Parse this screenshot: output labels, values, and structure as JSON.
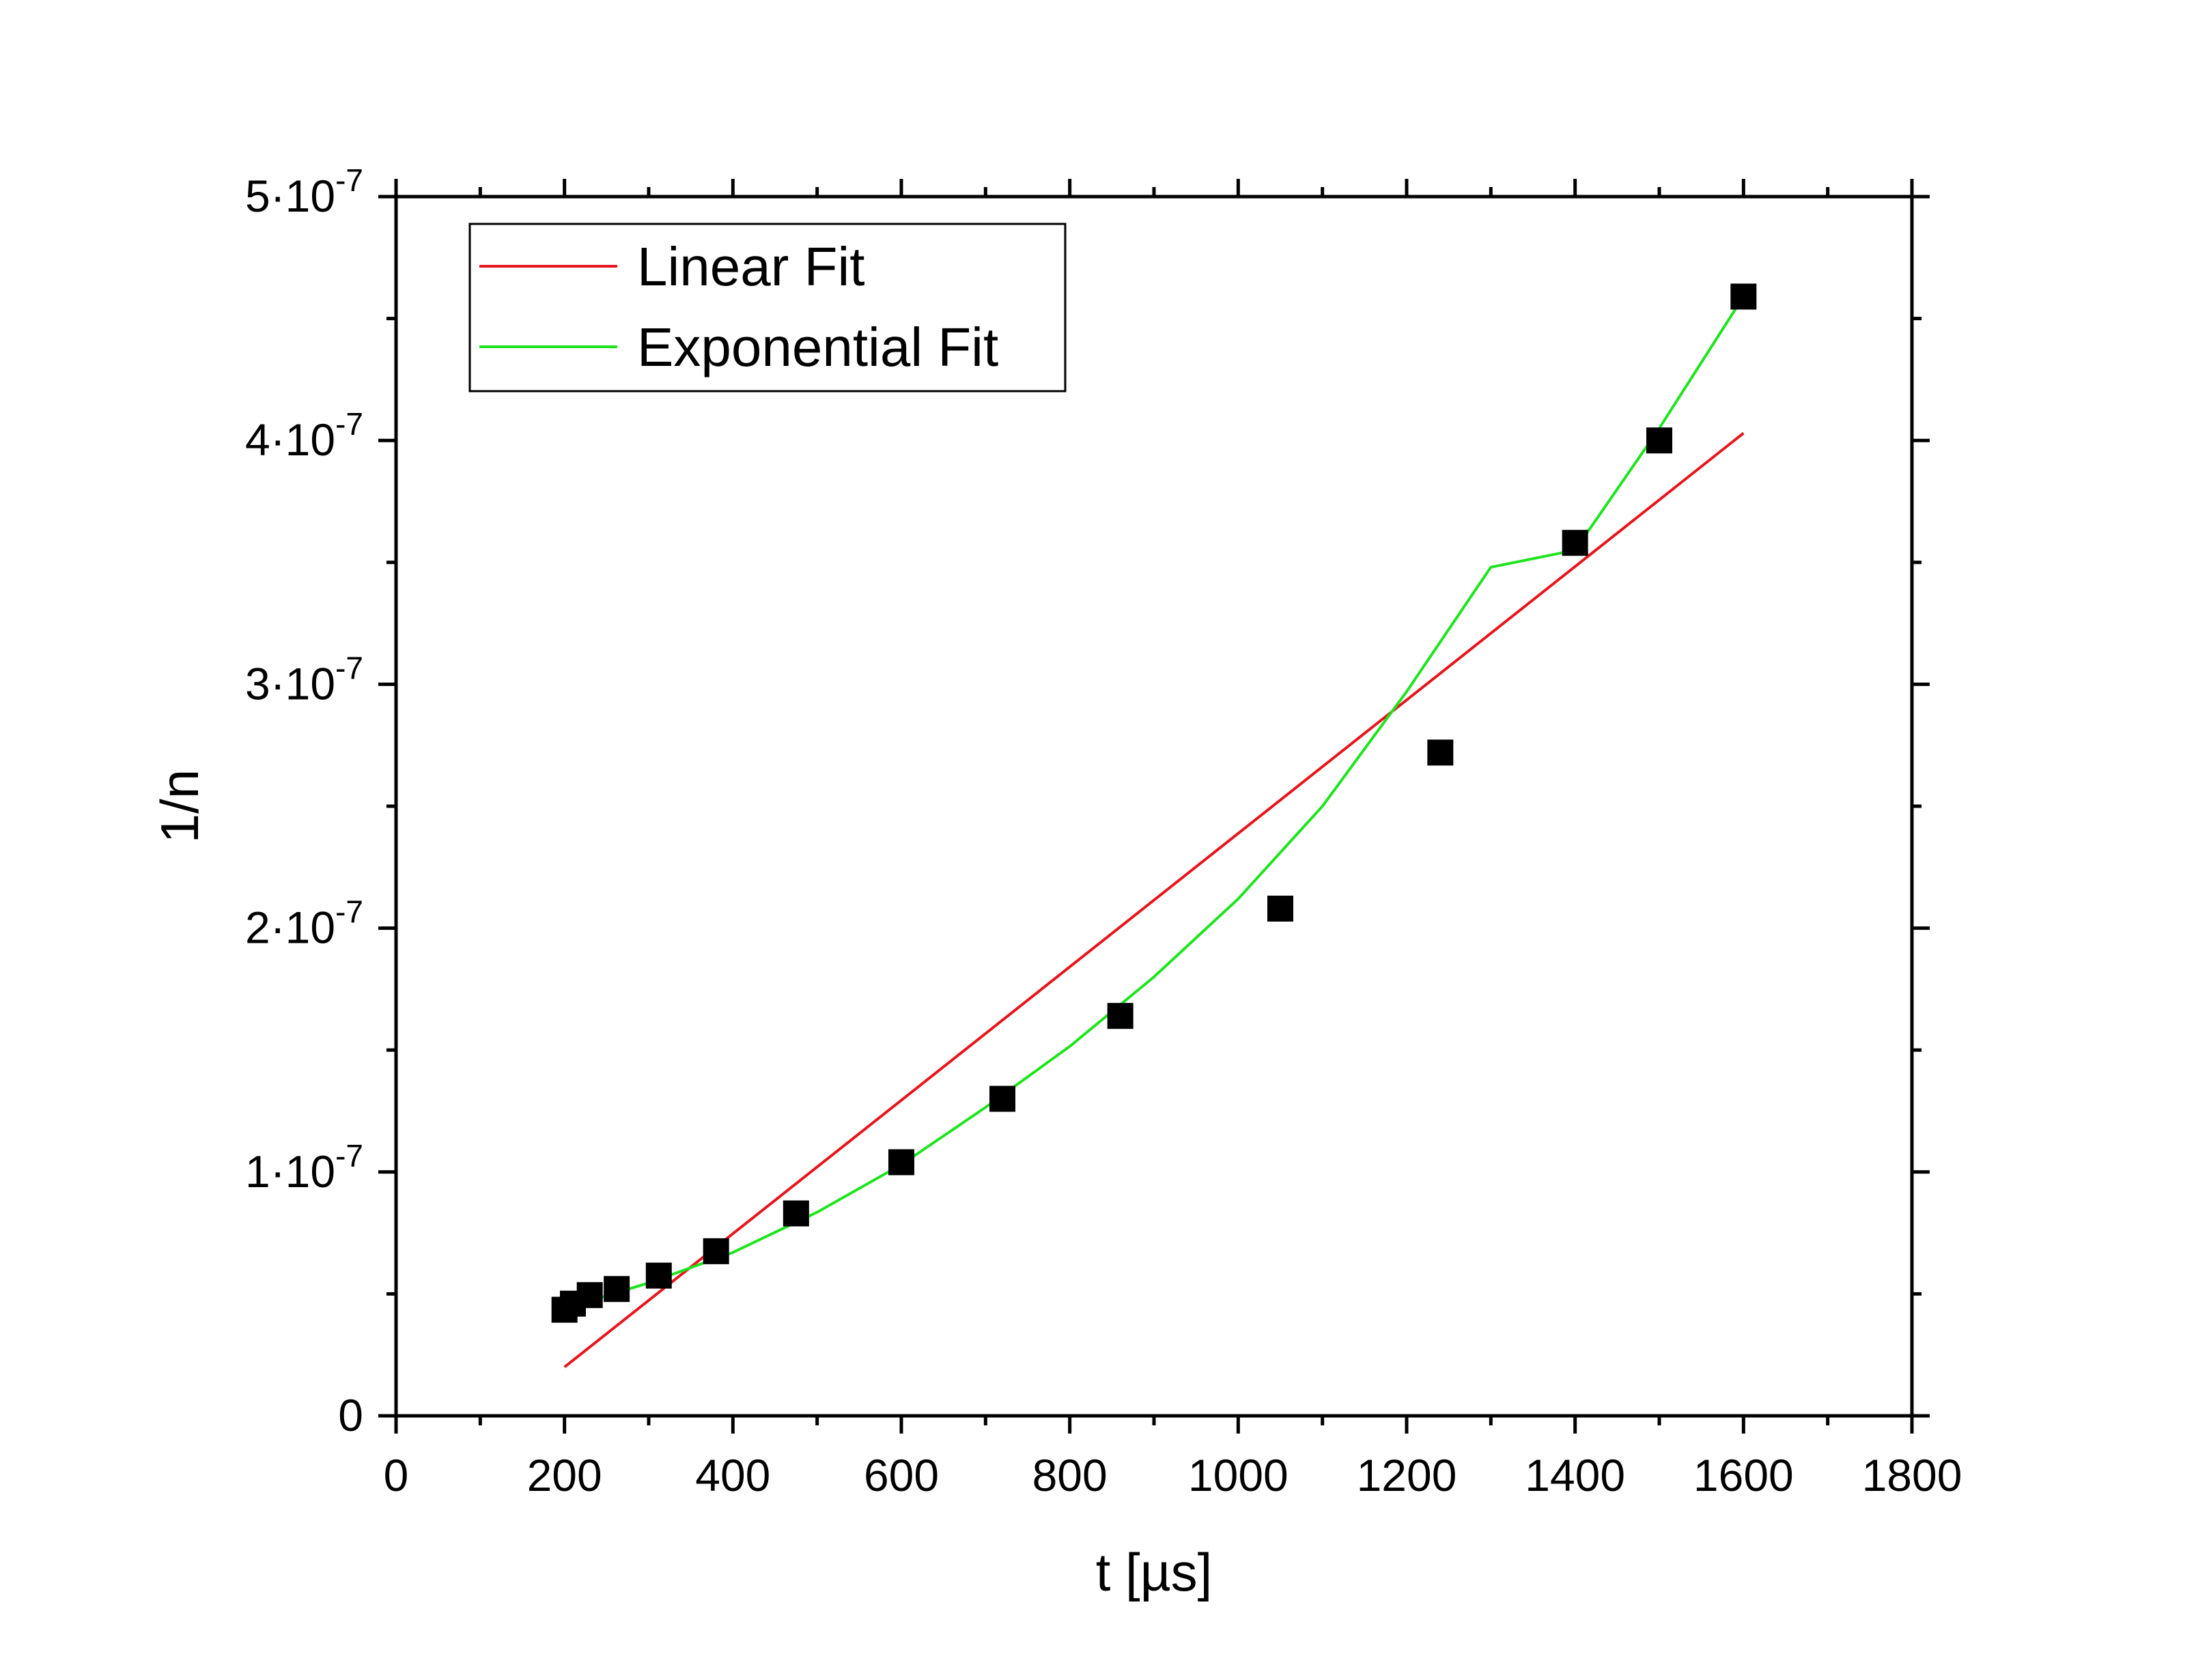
{
  "chart_data": {
    "type": "scatter",
    "xlabel": "t [µs]",
    "ylabel": "1/n",
    "xlim": [
      0,
      1800
    ],
    "ylim": [
      0,
      5e-07
    ],
    "x_ticks": [
      {
        "value": 0,
        "label": "0"
      },
      {
        "value": 200,
        "label": "200"
      },
      {
        "value": 400,
        "label": "400"
      },
      {
        "value": 600,
        "label": "600"
      },
      {
        "value": 800,
        "label": "800"
      },
      {
        "value": 1000,
        "label": "1000"
      },
      {
        "value": 1200,
        "label": "1200"
      },
      {
        "value": 1400,
        "label": "1400"
      },
      {
        "value": 1600,
        "label": "1600"
      },
      {
        "value": 1800,
        "label": "1800"
      }
    ],
    "y_ticks": [
      {
        "value": 0,
        "mantissa": "0",
        "exponent": ""
      },
      {
        "value": 1e-07,
        "mantissa": "1·10",
        "exponent": "-7"
      },
      {
        "value": 2e-07,
        "mantissa": "2·10",
        "exponent": "-7"
      },
      {
        "value": 3e-07,
        "mantissa": "3·10",
        "exponent": "-7"
      },
      {
        "value": 4e-07,
        "mantissa": "4·10",
        "exponent": "-7"
      },
      {
        "value": 5e-07,
        "mantissa": "5·10",
        "exponent": "-7"
      }
    ],
    "x_minor_step": 100,
    "y_minor_step": 5e-08,
    "grid": false,
    "legend": {
      "position": "top-left",
      "entries": [
        {
          "label": "Linear Fit",
          "color": "#e8141c"
        },
        {
          "label": "Exponential Fit",
          "color": "#1ee41e"
        }
      ]
    },
    "series": [
      {
        "kind": "points",
        "marker": "square",
        "color": "#000000",
        "x": [
          200,
          210,
          230,
          262,
          312,
          380,
          475,
          600,
          720,
          860,
          1050,
          1240,
          1400,
          1500,
          1600
        ],
        "y": [
          4.35e-08,
          4.6e-08,
          4.95e-08,
          5.2e-08,
          5.75e-08,
          6.75e-08,
          8.3e-08,
          1.04e-07,
          1.3e-07,
          1.64e-07,
          2.08e-07,
          2.72e-07,
          3.58e-07,
          4e-07,
          4.59e-07
        ]
      },
      {
        "kind": "line",
        "name": "Linear Fit",
        "color": "#e8141c",
        "x": [
          200,
          1600
        ],
        "y": [
          2e-08,
          4.03e-07
        ]
      },
      {
        "kind": "line",
        "name": "Exponential Fit",
        "color": "#1ee41e",
        "x": [
          200,
          300,
          400,
          500,
          600,
          700,
          800,
          900,
          1000,
          1100,
          1200,
          1300,
          1400,
          1500,
          1600
        ],
        "y": [
          4.4e-08,
          5.45e-08,
          6.7e-08,
          8.35e-08,
          1.03e-07,
          1.265e-07,
          1.515e-07,
          1.8e-07,
          2.12e-07,
          2.5e-07,
          2.97e-07,
          3.48e-07,
          3.55e-07,
          4.05e-07,
          4.59e-07
        ]
      }
    ]
  }
}
